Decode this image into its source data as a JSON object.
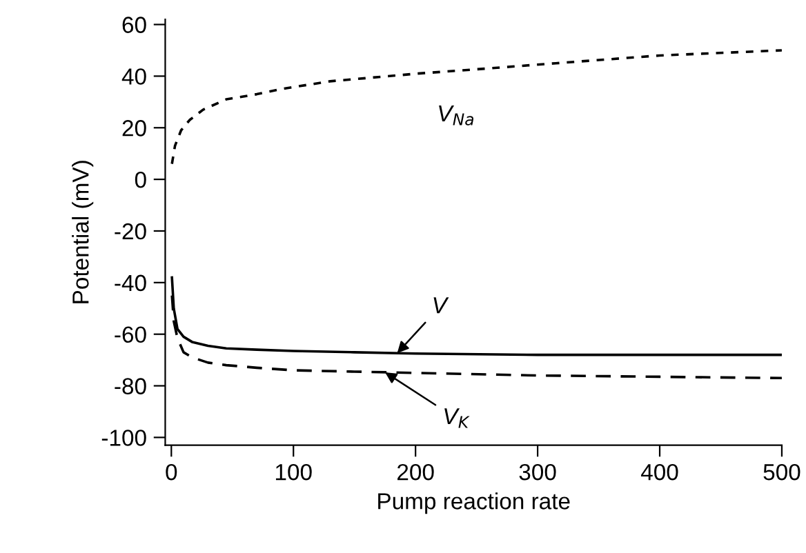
{
  "chart_data": {
    "type": "line",
    "xlabel": "Pump reaction rate",
    "ylabel": "Potential (mV)",
    "xlim": [
      -5,
      500
    ],
    "xticks": [
      0,
      100,
      200,
      300,
      400,
      500
    ],
    "ylim": [
      -103,
      62
    ],
    "yticks": [
      -100,
      -80,
      -60,
      -40,
      -20,
      0,
      20,
      40,
      60
    ],
    "grid": false,
    "legend": false,
    "marker": "none",
    "series": [
      {
        "name": "V$_{Na}$",
        "color": "#000000",
        "line_style": "dotted",
        "x": [
          0.5,
          3,
          8,
          15,
          26,
          45,
          70,
          90,
          130,
          202,
          260,
          315,
          400,
          500
        ],
        "values": [
          6,
          13,
          19,
          23,
          27,
          31,
          33,
          35,
          38,
          41,
          43,
          45,
          48,
          50
        ]
      },
      {
        "name": "V",
        "color": "#000000",
        "line_style": "solid",
        "x": [
          0.5,
          2,
          5,
          10,
          17,
          30,
          45,
          70,
          100,
          150,
          200,
          300,
          400,
          500
        ],
        "values": [
          -38,
          -50,
          -58,
          -61,
          -63,
          -64.5,
          -65.5,
          -66,
          -66.5,
          -67,
          -67.5,
          -68,
          -68,
          -68
        ]
      },
      {
        "name": "V$_{K}$",
        "color": "#000000",
        "line_style": "dashed",
        "x": [
          0.5,
          2,
          5,
          10,
          17,
          30,
          45,
          70,
          100,
          150,
          200,
          300,
          400,
          500
        ],
        "values": [
          -45,
          -55,
          -61.5,
          -67,
          -69,
          -71,
          -72,
          -73,
          -74,
          -74.5,
          -75,
          -76,
          -76.5,
          -77
        ]
      }
    ]
  }
}
